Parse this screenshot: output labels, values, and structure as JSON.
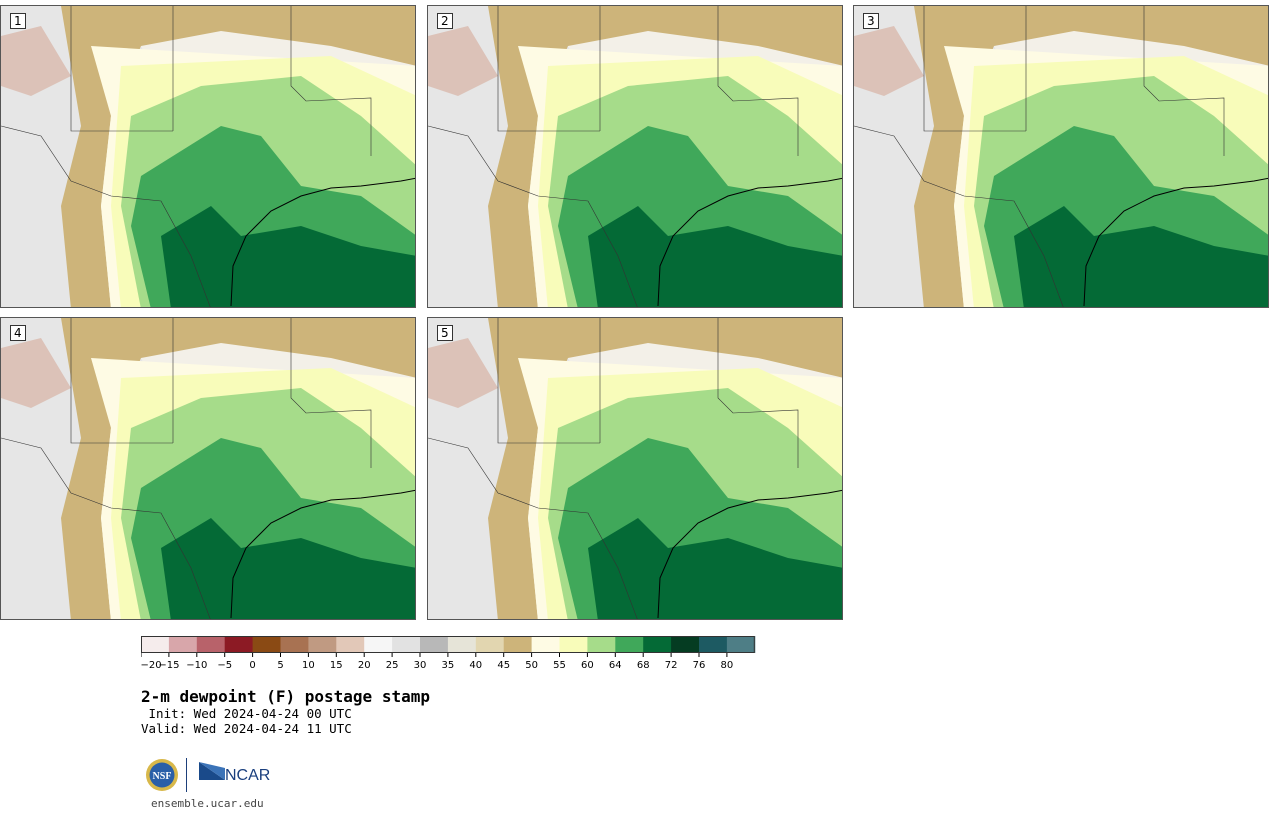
{
  "title": "2-m dewpoint (F) postage stamp",
  "init_line": " Init: Wed 2024-04-24 00 UTC",
  "valid_line": "Valid: Wed 2024-04-24 11 UTC",
  "site": "ensemble.ucar.edu",
  "logo_text": {
    "nsf": "NSF",
    "ncar": "NCAR"
  },
  "members": [
    "1",
    "2",
    "3",
    "4",
    "5"
  ],
  "colorbar": {
    "ticks": [
      "−20",
      "−15",
      "−10",
      "−5",
      "0",
      "5",
      "10",
      "15",
      "20",
      "25",
      "30",
      "35",
      "40",
      "45",
      "50",
      "55",
      "60",
      "64",
      "68",
      "72",
      "76",
      "80"
    ],
    "colors": [
      "#f5ecec",
      "#d8a6aa",
      "#b8626a",
      "#8c1a24",
      "#8a4a14",
      "#a87252",
      "#c09a82",
      "#e2c8b8",
      "#f6f6f6",
      "#e2e2e2",
      "#b8b8b8",
      "#e6e4d8",
      "#e2d6b0",
      "#cdb47a",
      "#fefbe4",
      "#f8fcba",
      "#a6dc8a",
      "#40a85a",
      "#046a36",
      "#053c22",
      "#1d5a62",
      "#4e7e86"
    ]
  },
  "map_colors": {
    "dew_40s": "#cdb47a",
    "dew_50": "#fefbe4",
    "dew_55": "#f8fcba",
    "dew_60": "#a6dc8a",
    "dew_64": "#40a85a",
    "dew_68": "#046a36",
    "dry_gray": "#e6e6e6",
    "dry_brown": "#dcc2b8",
    "border": "#333333",
    "coast": "#000000"
  }
}
